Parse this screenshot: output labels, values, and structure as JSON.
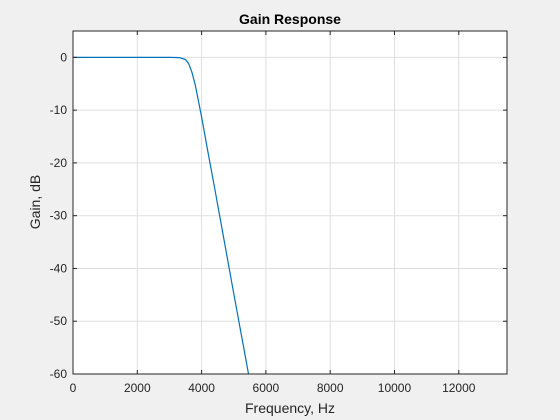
{
  "chart_data": {
    "type": "line",
    "title": "Gain Response",
    "xlabel": "Frequency, Hz",
    "ylabel": "Gain, dB",
    "xlim": [
      0,
      13500
    ],
    "ylim": [
      -60,
      5
    ],
    "xticks": [
      0,
      2000,
      4000,
      6000,
      8000,
      10000,
      12000
    ],
    "xtick_labels": [
      "0",
      "2000",
      "4000",
      "6000",
      "8000",
      "10000",
      "12000"
    ],
    "yticks": [
      0,
      -10,
      -20,
      -30,
      -40,
      -50,
      -60
    ],
    "ytick_labels": [
      "0",
      "-10",
      "-20",
      "-30",
      "-40",
      "-50",
      "-60"
    ],
    "grid": true,
    "series": [
      {
        "color": "#0072bd",
        "x": [
          0,
          1000,
          2000,
          3000,
          3300,
          3500,
          3600,
          3700,
          3800,
          3900,
          4000,
          4200,
          4400,
          4600,
          4800,
          5000,
          5200,
          5400,
          5460
        ],
        "y": [
          0,
          0,
          0,
          0,
          -0.05,
          -0.4,
          -1.2,
          -2.8,
          -5.2,
          -8.2,
          -11.3,
          -18.0,
          -24.6,
          -31.3,
          -38.0,
          -44.7,
          -51.4,
          -58.0,
          -60
        ]
      }
    ]
  },
  "colors": {
    "figure_bg": "#f0f0f0",
    "axes_bg": "#ffffff",
    "grid": "#dfdfdf",
    "axis": "#262626"
  }
}
